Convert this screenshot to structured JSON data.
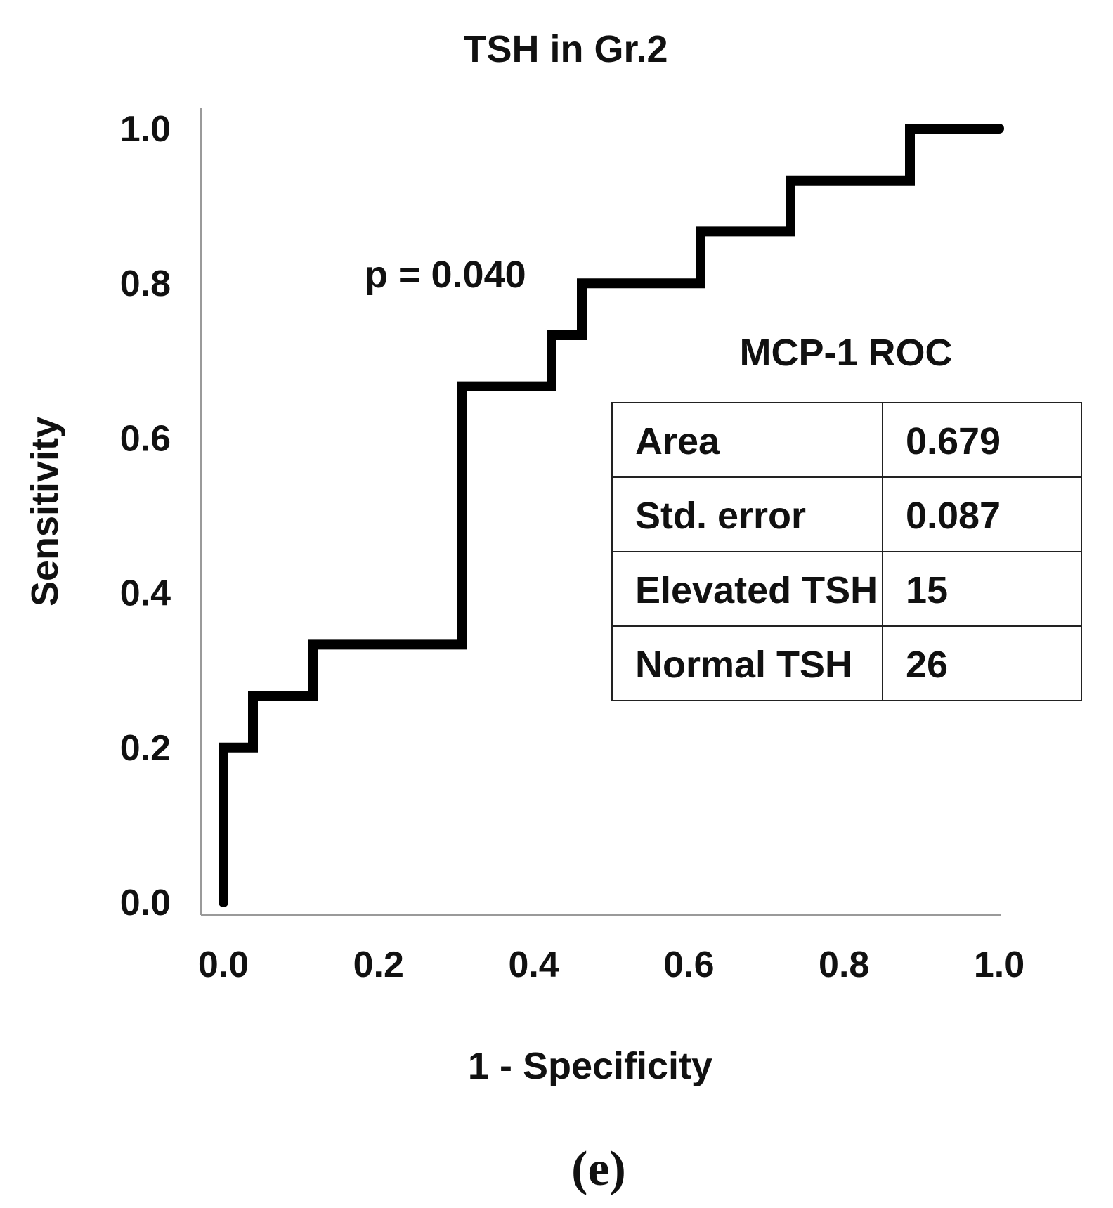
{
  "chart_data": {
    "type": "line",
    "title": "TSH in Gr.2",
    "xlabel": "1 - Specificity",
    "ylabel": "Sensitivity",
    "xlim": [
      0,
      1
    ],
    "ylim": [
      0,
      1
    ],
    "xticks": [
      "0.0",
      "0.2",
      "0.4",
      "0.6",
      "0.8",
      "1.0"
    ],
    "yticks": [
      "0.0",
      "0.2",
      "0.4",
      "0.6",
      "0.8",
      "1.0"
    ],
    "series": [
      {
        "name": "ROC curve",
        "x": [
          0.0,
          0.0,
          0.038,
          0.038,
          0.115,
          0.115,
          0.308,
          0.308,
          0.423,
          0.423,
          0.462,
          0.462,
          0.615,
          0.615,
          0.731,
          0.731,
          0.885,
          0.885,
          1.0
        ],
        "y": [
          0.0,
          0.2,
          0.2,
          0.267,
          0.267,
          0.333,
          0.333,
          0.667,
          0.667,
          0.733,
          0.733,
          0.8,
          0.8,
          0.867,
          0.867,
          0.933,
          0.933,
          1.0,
          1.0
        ]
      }
    ],
    "annotation": "p = 0.040",
    "panel_label": "(e)"
  },
  "inset": {
    "title": "MCP-1 ROC",
    "rows": [
      {
        "label": "Area",
        "value": "0.679"
      },
      {
        "label": "Std. error",
        "value": "0.087"
      },
      {
        "label": "Elevated TSH",
        "value": "15"
      },
      {
        "label": "Normal TSH",
        "value": "26"
      }
    ]
  },
  "colors": {
    "curve": "#000000",
    "axis": "#9a9a9a",
    "text": "#111111"
  }
}
